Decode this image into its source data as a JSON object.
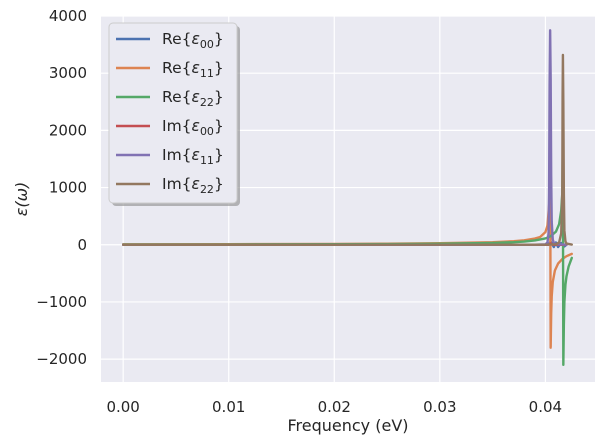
{
  "chart_data": {
    "type": "line",
    "xlabel": "Frequency (eV)",
    "ylabel": "ε(ω)",
    "xlim": [
      -0.0021,
      0.0447
    ],
    "ylim": [
      -2400,
      4000
    ],
    "xticks": [
      0.0,
      0.01,
      0.02,
      0.03,
      0.04
    ],
    "xtick_labels": [
      "0.00",
      "0.01",
      "0.02",
      "0.03",
      "0.04"
    ],
    "yticks": [
      -2000,
      -1000,
      0,
      1000,
      2000,
      3000,
      4000
    ],
    "ytick_labels": [
      "−2000",
      "−1000",
      "0",
      "1000",
      "2000",
      "3000",
      "4000"
    ],
    "grid": true,
    "legend_position": "top-left",
    "series": [
      {
        "name": "Re{ε00}",
        "label_main": "Re{",
        "label_sym": "ε",
        "label_sub": "00",
        "label_end": "}",
        "color": "#4c72b0",
        "x": [
          0.0,
          0.01,
          0.02,
          0.03,
          0.038,
          0.0403,
          0.0405,
          0.0408,
          0.041,
          0.0412,
          0.0415,
          0.0418,
          0.042
        ],
        "y": [
          0,
          0,
          0,
          0,
          0,
          0,
          60,
          -40,
          40,
          -40,
          30,
          -30,
          0
        ]
      },
      {
        "name": "Re{ε11}",
        "label_main": "Re{",
        "label_sym": "ε",
        "label_sub": "11",
        "label_end": "}",
        "color": "#dd8452",
        "x": [
          0.0,
          0.01,
          0.02,
          0.025,
          0.03,
          0.035,
          0.037,
          0.038,
          0.039,
          0.0395,
          0.04,
          0.0402,
          0.0404,
          0.04045,
          0.0405,
          0.04055,
          0.0406,
          0.0407,
          0.0409,
          0.0412,
          0.0416,
          0.042,
          0.0425
        ],
        "y": [
          8,
          10,
          14,
          18,
          26,
          45,
          62,
          78,
          108,
          135,
          220,
          340,
          800,
          1600,
          -1800,
          -1200,
          -900,
          -650,
          -450,
          -330,
          -250,
          -200,
          -160
        ]
      },
      {
        "name": "Re{ε22}",
        "label_main": "Re{",
        "label_sym": "ε",
        "label_sub": "22",
        "label_end": "}",
        "color": "#55a868",
        "x": [
          0.0,
          0.01,
          0.02,
          0.025,
          0.03,
          0.035,
          0.037,
          0.038,
          0.039,
          0.04,
          0.0405,
          0.041,
          0.0413,
          0.0415,
          0.0416,
          0.04165,
          0.0417,
          0.04175,
          0.0418,
          0.0419,
          0.042,
          0.0422,
          0.0425
        ],
        "y": [
          5,
          6,
          9,
          12,
          18,
          32,
          45,
          56,
          75,
          110,
          150,
          230,
          360,
          600,
          900,
          1700,
          -2100,
          -1400,
          -1000,
          -700,
          -550,
          -380,
          -230
        ]
      },
      {
        "name": "Im{ε00}",
        "label_main": "Im{",
        "label_sym": "ε",
        "label_sub": "00",
        "label_end": "}",
        "color": "#c44e52",
        "x": [
          0.0,
          0.02,
          0.038,
          0.0403,
          0.0405,
          0.0407,
          0.041,
          0.042
        ],
        "y": [
          0,
          0,
          0,
          0,
          25,
          0,
          0,
          0
        ]
      },
      {
        "name": "Im{ε11}",
        "label_main": "Im{",
        "label_sym": "ε",
        "label_sub": "11",
        "label_end": "}",
        "color": "#8172b3",
        "x": [
          0.0,
          0.02,
          0.039,
          0.04,
          0.0402,
          0.0403,
          0.04035,
          0.0404,
          0.04045,
          0.0405,
          0.04055,
          0.0406,
          0.0407,
          0.0408,
          0.041,
          0.042
        ],
        "y": [
          0,
          0,
          2,
          8,
          40,
          200,
          900,
          2800,
          3750,
          2900,
          1200,
          400,
          90,
          35,
          10,
          2
        ]
      },
      {
        "name": "Im{ε22}",
        "label_main": "Im{",
        "label_sym": "ε",
        "label_sub": "22",
        "label_end": "}",
        "color": "#937860",
        "x": [
          0.0,
          0.02,
          0.04,
          0.041,
          0.0413,
          0.0415,
          0.0416,
          0.04163,
          0.04166,
          0.0417,
          0.04175,
          0.0418,
          0.0419,
          0.042,
          0.0425
        ],
        "y": [
          0,
          0,
          2,
          8,
          40,
          200,
          900,
          2600,
          3320,
          2500,
          900,
          250,
          60,
          20,
          4
        ]
      }
    ]
  }
}
